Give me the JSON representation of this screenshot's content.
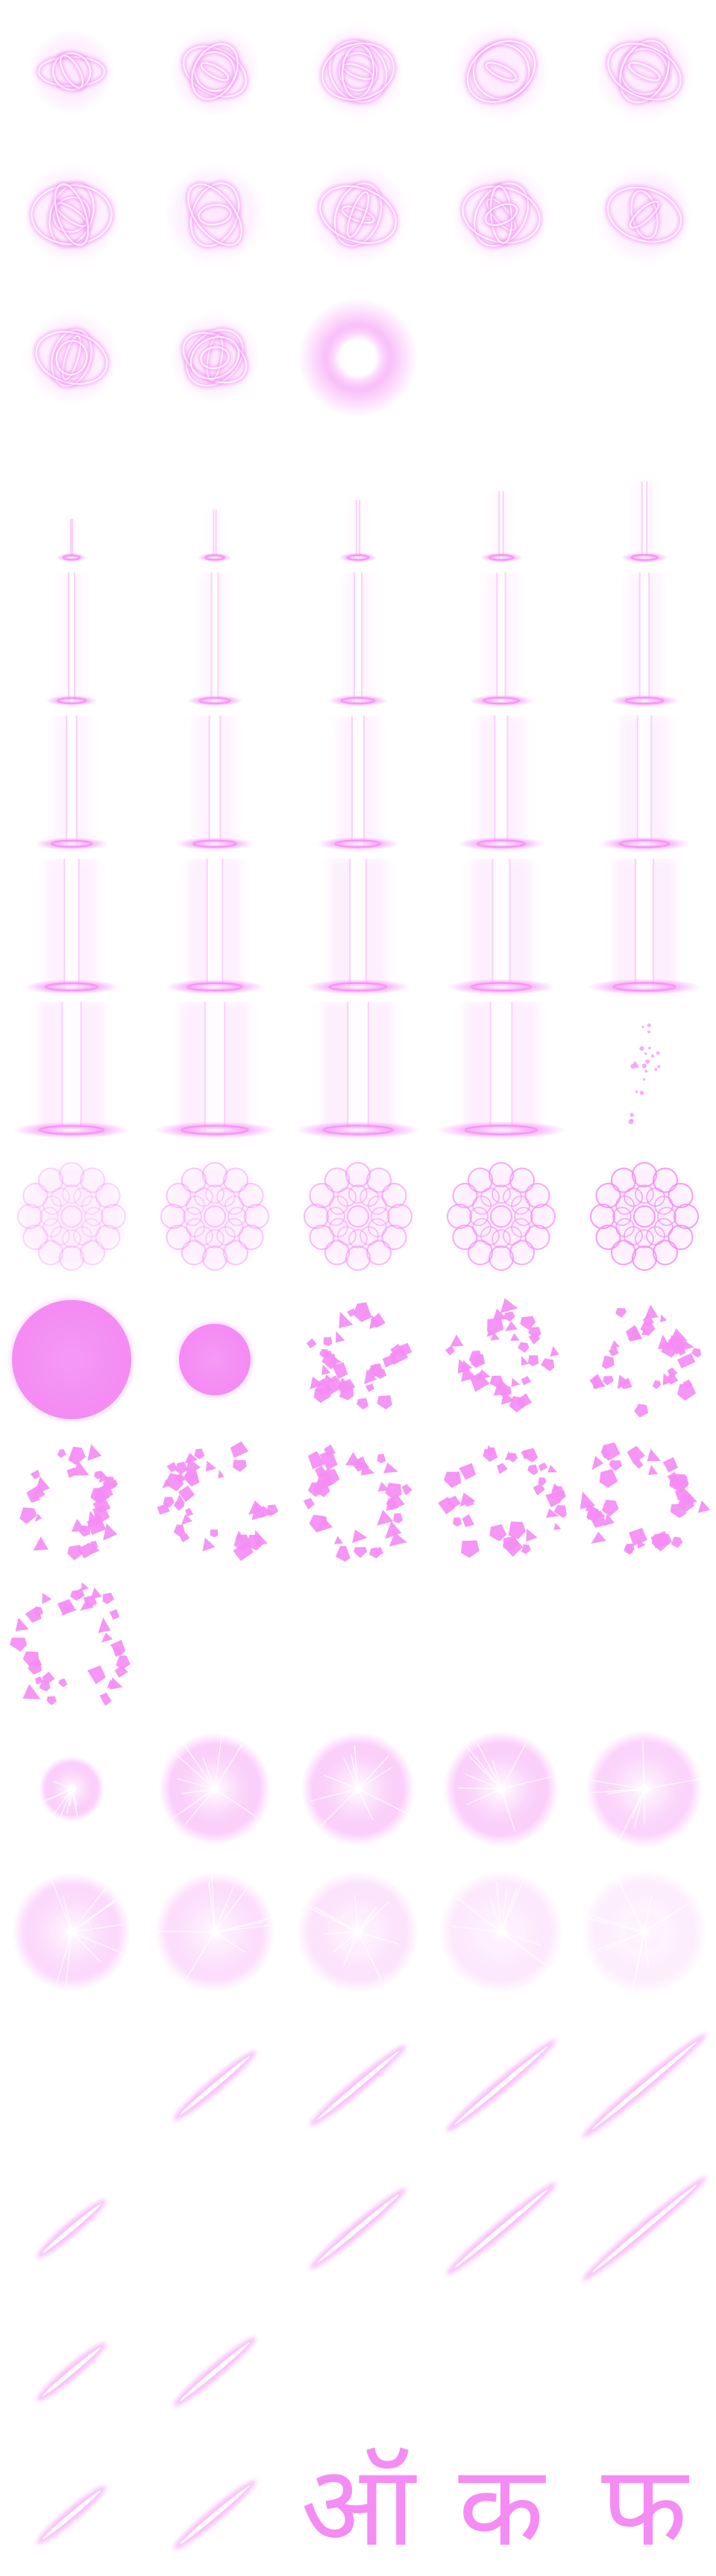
{
  "sheet": {
    "title": "",
    "columns": 5,
    "accent_color": "#f48cf4",
    "light_color": "#fbd6fb",
    "core_color": "#ffffff"
  },
  "sequences": [
    {
      "name": "swirl-ring",
      "icon": "swirl-ring-icon",
      "frame_count": 13,
      "kinds": [
        "swirl",
        "swirl",
        "swirl",
        "swirl",
        "swirl",
        "swirl",
        "swirl",
        "swirl",
        "swirl",
        "swirl",
        "swirl",
        "swirl",
        "flare"
      ]
    },
    {
      "name": "light-pillar",
      "icon": "light-pillar-icon",
      "frame_count": 25,
      "kinds": [
        "pillar",
        "pillar",
        "pillar",
        "pillar",
        "pillar",
        "pillar",
        "pillar",
        "pillar",
        "pillar",
        "pillar",
        "pillar",
        "pillar",
        "pillar",
        "pillar",
        "pillar",
        "pillar",
        "pillar",
        "pillar",
        "pillar",
        "pillar",
        "pillar",
        "pillar",
        "pillar",
        "pillar",
        "sparks"
      ]
    },
    {
      "name": "lace-disc",
      "icon": "lace-disc-icon",
      "frame_count": 5,
      "kinds": [
        "lace",
        "lace",
        "lace",
        "lace",
        "lace"
      ]
    },
    {
      "name": "shatter-orb",
      "icon": "shatter-orb-icon",
      "frame_count": 11,
      "kinds": [
        "orb",
        "orb",
        "shards",
        "shards",
        "shards",
        "shards",
        "shards",
        "shards",
        "shards",
        "shards",
        "shards"
      ]
    },
    {
      "name": "burst-orb",
      "icon": "burst-orb-icon",
      "frame_count": 10,
      "kinds": [
        "burst",
        "burst",
        "burst",
        "burst",
        "burst",
        "burst",
        "burst",
        "burst",
        "burst",
        "burst"
      ]
    },
    {
      "name": "slash",
      "icon": "slash-icon",
      "frame_count": 12,
      "kinds": [
        "empty",
        "slash",
        "slash",
        "slash",
        "slash",
        "slash",
        "empty",
        "slash",
        "slash",
        "slash",
        "slash",
        "slash"
      ]
    },
    {
      "name": "sanskrit-seed-glyph",
      "icon": "sanskrit-glyph-icon",
      "frame_count": 5,
      "kinds": [
        "slash",
        "slash",
        "glyph",
        "glyph",
        "glyph"
      ]
    }
  ],
  "glyph_cells": {
    "frames": [
      {
        "text": "ऑ"
      },
      {
        "text": "क"
      },
      {
        "text": "फ"
      }
    ]
  }
}
